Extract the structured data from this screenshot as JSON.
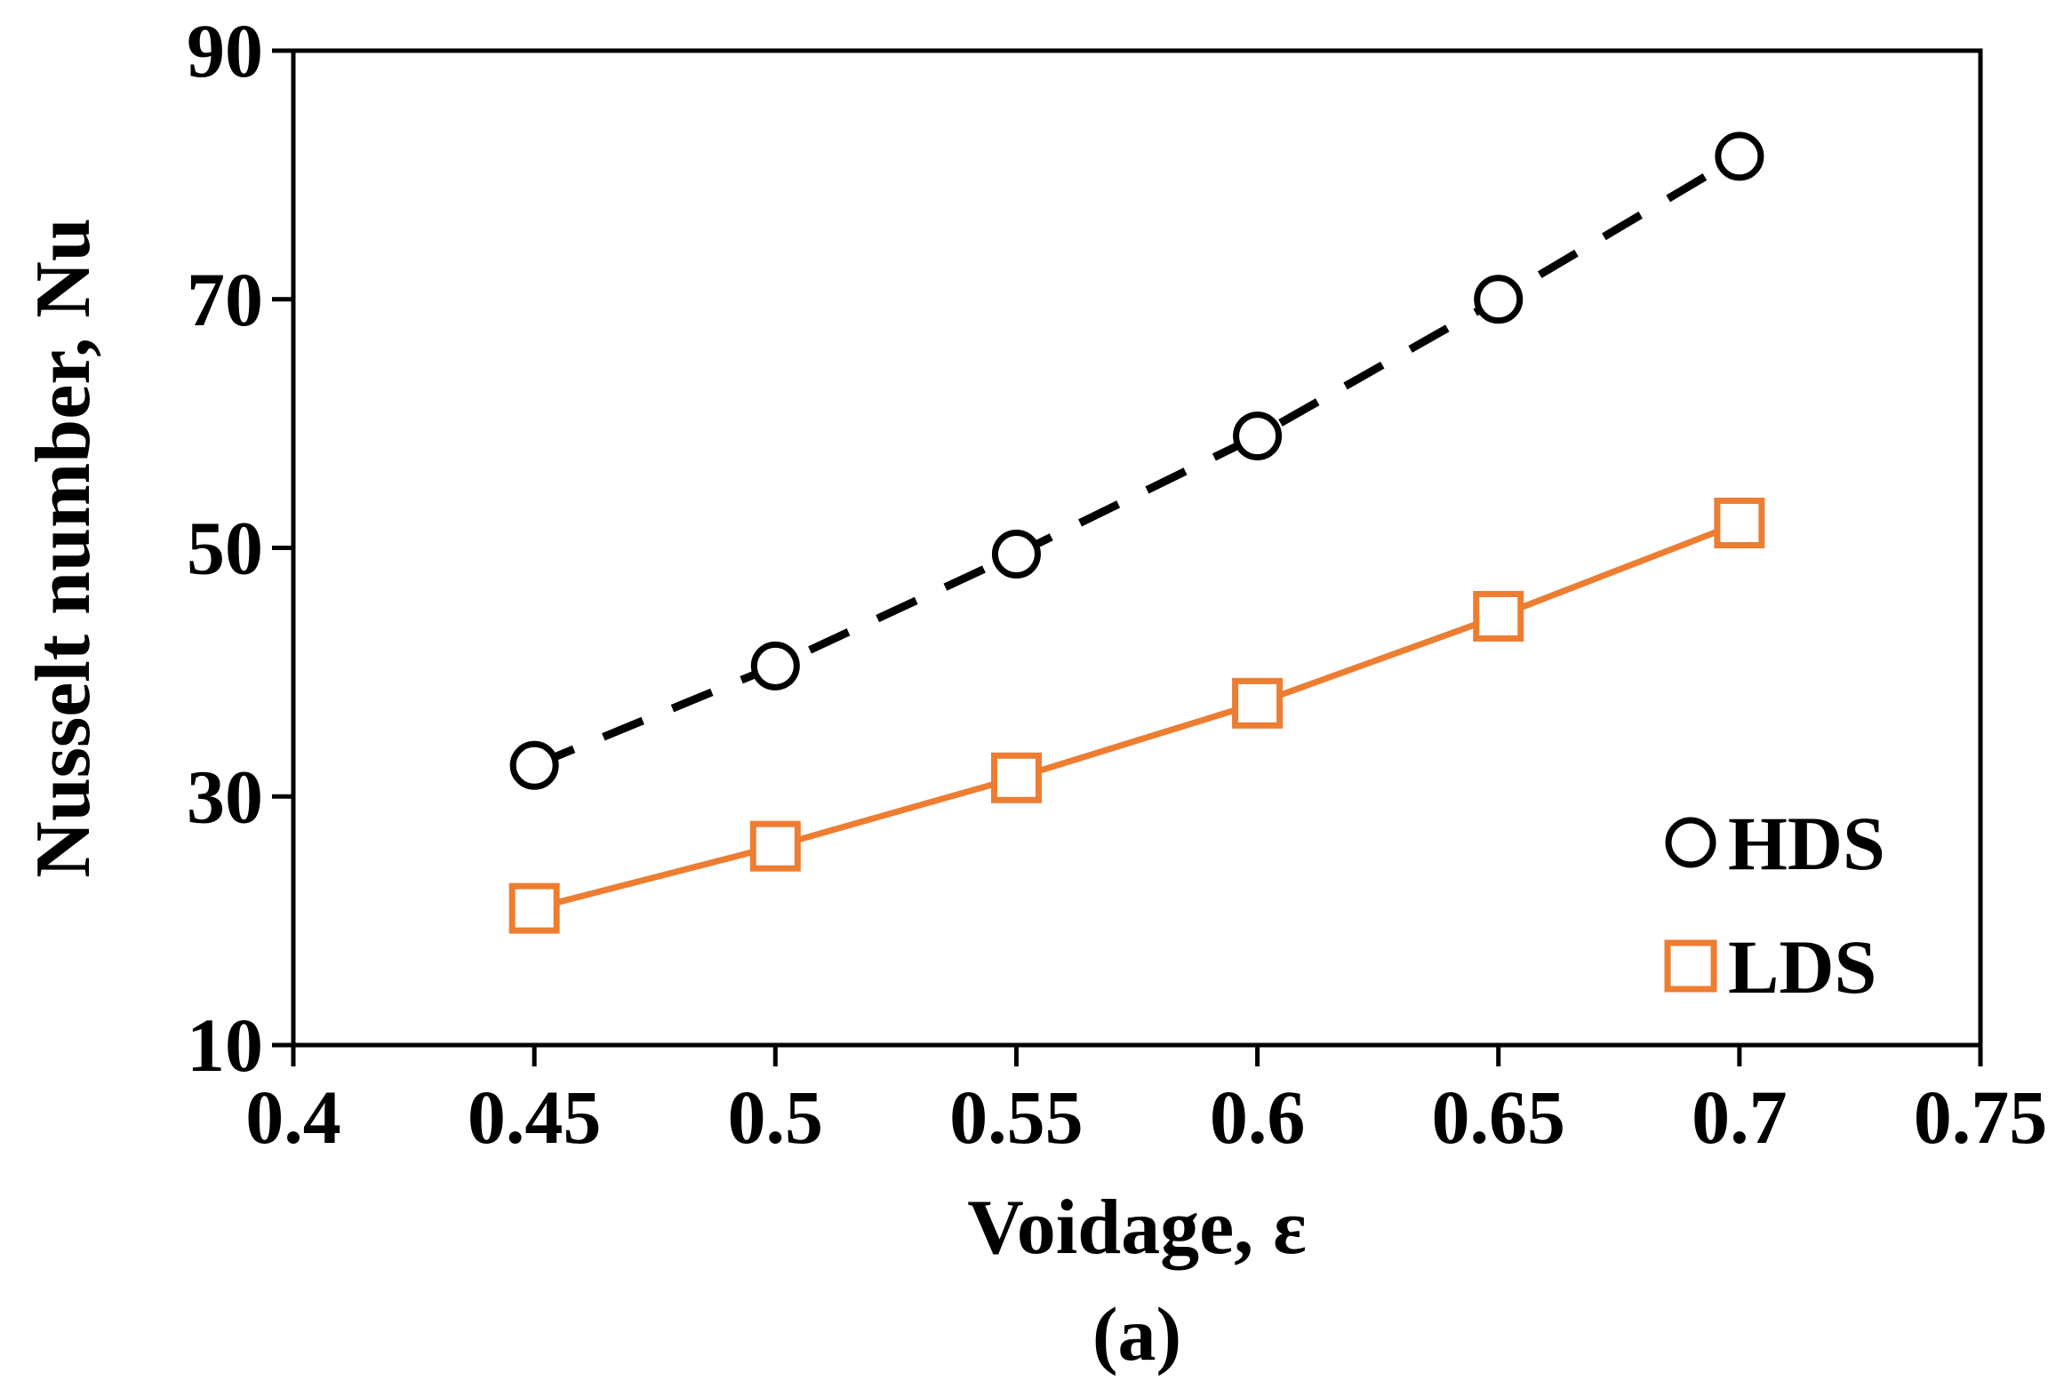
{
  "chart_data": {
    "type": "line",
    "title": "",
    "caption": "(a)",
    "xlabel": "Voidage, ε",
    "ylabel": "Nusselt number, Nu",
    "xlim": [
      0.4,
      0.75
    ],
    "ylim": [
      10,
      90
    ],
    "xticks": [
      0.4,
      0.45,
      0.5,
      0.55,
      0.6,
      0.65,
      0.7,
      0.75
    ],
    "xtick_labels": [
      "0.4",
      "0.45",
      "0.5",
      "0.55",
      "0.6",
      "0.65",
      "0.7",
      "0.75"
    ],
    "yticks": [
      10,
      30,
      50,
      70,
      90
    ],
    "ytick_labels": [
      "10",
      "30",
      "50",
      "70",
      "90"
    ],
    "grid": false,
    "legend_position": "bottom-right",
    "series": [
      {
        "name": "HDS",
        "marker": "circle",
        "line_style": "dashed",
        "color": "#000000",
        "x": [
          0.45,
          0.5,
          0.55,
          0.6,
          0.65,
          0.7
        ],
        "values": [
          32.5,
          40.5,
          49.5,
          59,
          70,
          81.5
        ]
      },
      {
        "name": "LDS",
        "marker": "square",
        "line_style": "solid",
        "color": "#ED7D31",
        "x": [
          0.45,
          0.5,
          0.55,
          0.6,
          0.65,
          0.7
        ],
        "values": [
          21,
          26,
          31.5,
          37.5,
          44.5,
          52
        ]
      }
    ]
  }
}
